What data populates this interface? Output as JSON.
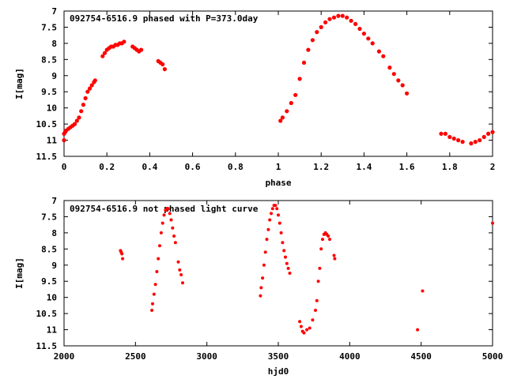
{
  "figure": {
    "background": "#ffffff",
    "point_color": "#ff0000"
  },
  "chart_data": [
    {
      "type": "scatter",
      "title": "092754-6516.9 phased with P=373.0day",
      "xlabel": "phase",
      "ylabel": "I[mag]",
      "xlim": [
        0,
        2
      ],
      "ylim": [
        11.5,
        7
      ],
      "y_inverted": true,
      "grid": false,
      "xticks": [
        0,
        0.2,
        0.4,
        0.6,
        0.8,
        1,
        1.2,
        1.4,
        1.6,
        1.8,
        2
      ],
      "xtick_labels": [
        "0",
        "0.2",
        "0.4",
        "0.6",
        "0.8",
        "1",
        "1.2",
        "1.4",
        "1.6",
        "1.8",
        "2"
      ],
      "yticks": [
        7,
        7.5,
        8,
        8.5,
        9,
        9.5,
        10,
        10.5,
        11,
        11.5
      ],
      "ytick_labels": [
        "7",
        "7.5",
        "8",
        "8.5",
        "9",
        "9.5",
        "10",
        "10.5",
        "11",
        "11.5"
      ],
      "series": [
        {
          "x": [
            0.0,
            0.005,
            0.01,
            0.02,
            0.03,
            0.04,
            0.05,
            0.06,
            0.07,
            0.08,
            0.09,
            0.1,
            0.11,
            0.12,
            0.13,
            0.14,
            0.145,
            0.18,
            0.19,
            0.2,
            0.21,
            0.22,
            0.23,
            0.24,
            0.25,
            0.26,
            0.27,
            0.28,
            0.32,
            0.33,
            0.34,
            0.35,
            0.36,
            0.44,
            0.45,
            0.46,
            0.47,
            0.0,
            1.01,
            1.02,
            1.04,
            1.06,
            1.08,
            1.1,
            1.12,
            1.14,
            1.16,
            1.18,
            1.2,
            1.22,
            1.24,
            1.26,
            1.28,
            1.3,
            1.32,
            1.34,
            1.36,
            1.38,
            1.4,
            1.42,
            1.44,
            1.47,
            1.49,
            1.52,
            1.54,
            1.56,
            1.58,
            1.6,
            1.76,
            1.78,
            1.8,
            1.82,
            1.84,
            1.86,
            1.9,
            1.92,
            1.94,
            1.96,
            1.98,
            2.0
          ],
          "y": [
            11.0,
            10.75,
            10.7,
            10.65,
            10.6,
            10.55,
            10.5,
            10.4,
            10.3,
            10.1,
            9.9,
            9.7,
            9.5,
            9.4,
            9.3,
            9.2,
            9.15,
            8.4,
            8.3,
            8.2,
            8.15,
            8.1,
            8.1,
            8.05,
            8.05,
            8.0,
            8.0,
            7.95,
            8.1,
            8.15,
            8.2,
            8.25,
            8.2,
            8.55,
            8.6,
            8.65,
            8.8,
            10.8,
            10.4,
            10.3,
            10.1,
            9.85,
            9.6,
            9.1,
            8.6,
            8.2,
            7.9,
            7.65,
            7.5,
            7.35,
            7.25,
            7.2,
            7.15,
            7.15,
            7.2,
            7.3,
            7.4,
            7.55,
            7.7,
            7.85,
            8.0,
            8.25,
            8.4,
            8.75,
            8.95,
            9.15,
            9.3,
            9.55,
            10.8,
            10.8,
            10.9,
            10.95,
            11.0,
            11.05,
            11.1,
            11.05,
            11.0,
            10.9,
            10.8,
            10.75
          ]
        }
      ]
    },
    {
      "type": "scatter",
      "title": "092754-6516.9 not phased light curve",
      "xlabel": "hjd0",
      "ylabel": "I[mag]",
      "xlim": [
        2000,
        5000
      ],
      "ylim": [
        11.5,
        7
      ],
      "y_inverted": true,
      "grid": false,
      "xticks": [
        2000,
        2500,
        3000,
        3500,
        4000,
        4500,
        5000
      ],
      "xtick_labels": [
        "2000",
        "2500",
        "3000",
        "3500",
        "4000",
        "4500",
        "5000"
      ],
      "yticks": [
        7,
        7.5,
        8,
        8.5,
        9,
        9.5,
        10,
        10.5,
        11,
        11.5
      ],
      "ytick_labels": [
        "7",
        "7.5",
        "8",
        "8.5",
        "9",
        "9.5",
        "10",
        "10.5",
        "11",
        "11.5"
      ],
      "series": [
        {
          "x": [
            2395,
            2400,
            2405,
            2410,
            2615,
            2620,
            2630,
            2640,
            2650,
            2660,
            2670,
            2680,
            2690,
            2700,
            2710,
            2720,
            2730,
            2740,
            2750,
            2760,
            2770,
            2780,
            2800,
            2810,
            2820,
            2830,
            3375,
            3380,
            3390,
            3400,
            3410,
            3420,
            3430,
            3440,
            3450,
            3460,
            3470,
            3480,
            3490,
            3500,
            3510,
            3520,
            3530,
            3540,
            3550,
            3560,
            3570,
            3580,
            3650,
            3660,
            3670,
            3680,
            3700,
            3720,
            3740,
            3760,
            3770,
            3780,
            3790,
            3800,
            3810,
            3820,
            3830,
            3840,
            3850,
            3860,
            3890,
            3895,
            4475,
            4510,
            5000
          ],
          "y": [
            8.55,
            8.6,
            8.65,
            8.8,
            10.4,
            10.2,
            9.9,
            9.6,
            9.2,
            8.8,
            8.4,
            8.0,
            7.7,
            7.45,
            7.3,
            7.25,
            7.25,
            7.4,
            7.6,
            7.85,
            8.1,
            8.3,
            8.9,
            9.15,
            9.3,
            9.55,
            9.95,
            9.7,
            9.4,
            9.0,
            8.6,
            8.2,
            7.9,
            7.6,
            7.4,
            7.25,
            7.15,
            7.15,
            7.25,
            7.45,
            7.7,
            8.0,
            8.3,
            8.55,
            8.75,
            8.95,
            9.1,
            9.25,
            10.75,
            10.9,
            11.05,
            11.1,
            11.0,
            10.95,
            10.7,
            10.4,
            10.1,
            9.5,
            9.1,
            8.5,
            8.2,
            8.05,
            8.0,
            8.05,
            8.1,
            8.2,
            8.7,
            8.8,
            11.0,
            9.8,
            7.7
          ]
        }
      ]
    }
  ]
}
